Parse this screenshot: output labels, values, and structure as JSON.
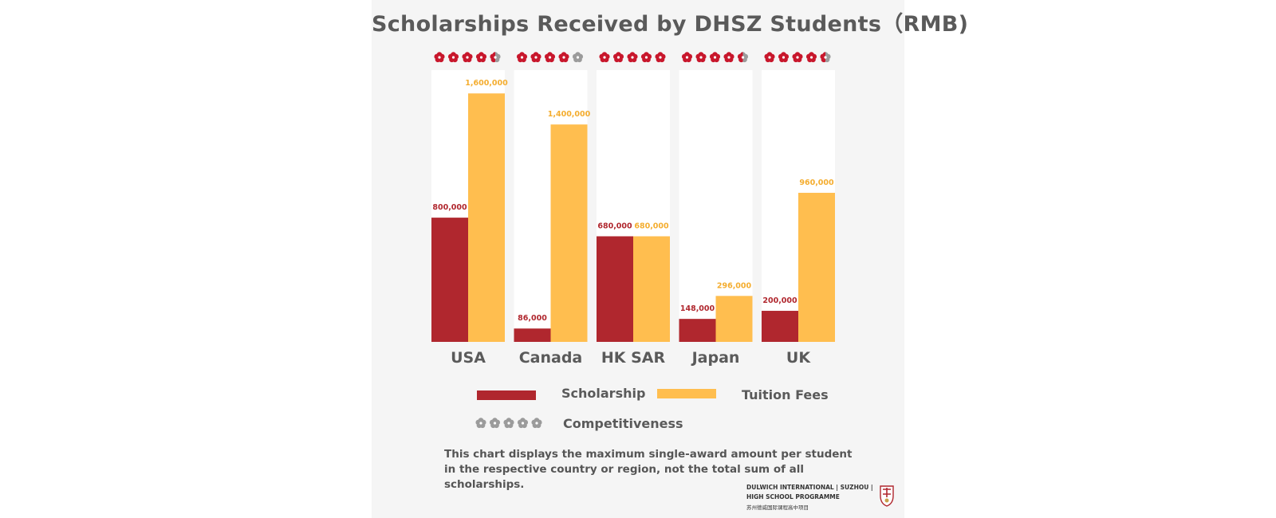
{
  "title": "Scholarships Received by DHSZ Students（RMB)",
  "chart_data": {
    "type": "bar",
    "categories": [
      "USA",
      "Canada",
      "HK SAR",
      "Japan",
      "UK"
    ],
    "series": [
      {
        "name": "Scholarship",
        "values": [
          800000,
          86000,
          680000,
          148000,
          200000
        ],
        "labels": [
          "800,000",
          "86,000",
          "680,000",
          "148,000",
          "200,000"
        ],
        "color": "#b0272e"
      },
      {
        "name": "Tuition Fees",
        "values": [
          1600000,
          1400000,
          680000,
          296000,
          960000
        ],
        "labels": [
          "1,600,000",
          "1,400,000",
          "680,000",
          "296,000",
          "960,000"
        ],
        "color": "#ffbe4f"
      }
    ],
    "competitiveness": [
      4.5,
      4,
      5,
      4.5,
      4.5
    ],
    "competitiveness_max": 5,
    "ylim": [
      0,
      1750000
    ],
    "grid": false,
    "legend_position": "bottom",
    "colors": {
      "scholarship": "#b0272e",
      "tuition": "#ffbe4f",
      "star_active": "#c8172c",
      "star_inactive": "#9b9b9b",
      "panel": "#ffffff"
    }
  },
  "legend": {
    "scholarship": "Scholarship",
    "tuition": "Tuition Fees",
    "competitiveness": "Competitiveness"
  },
  "note": "This chart displays the maximum single-award amount per student in the respective country or region, not the total sum of all scholarships.",
  "logo": {
    "line1": "DULWICH INTERNATIONAL | SUZHOU |",
    "line2": "HIGH SCHOOL PROGRAMME",
    "line3": "苏州德威国际课程高中项目",
    "crest_icon": "school-crest-icon"
  }
}
